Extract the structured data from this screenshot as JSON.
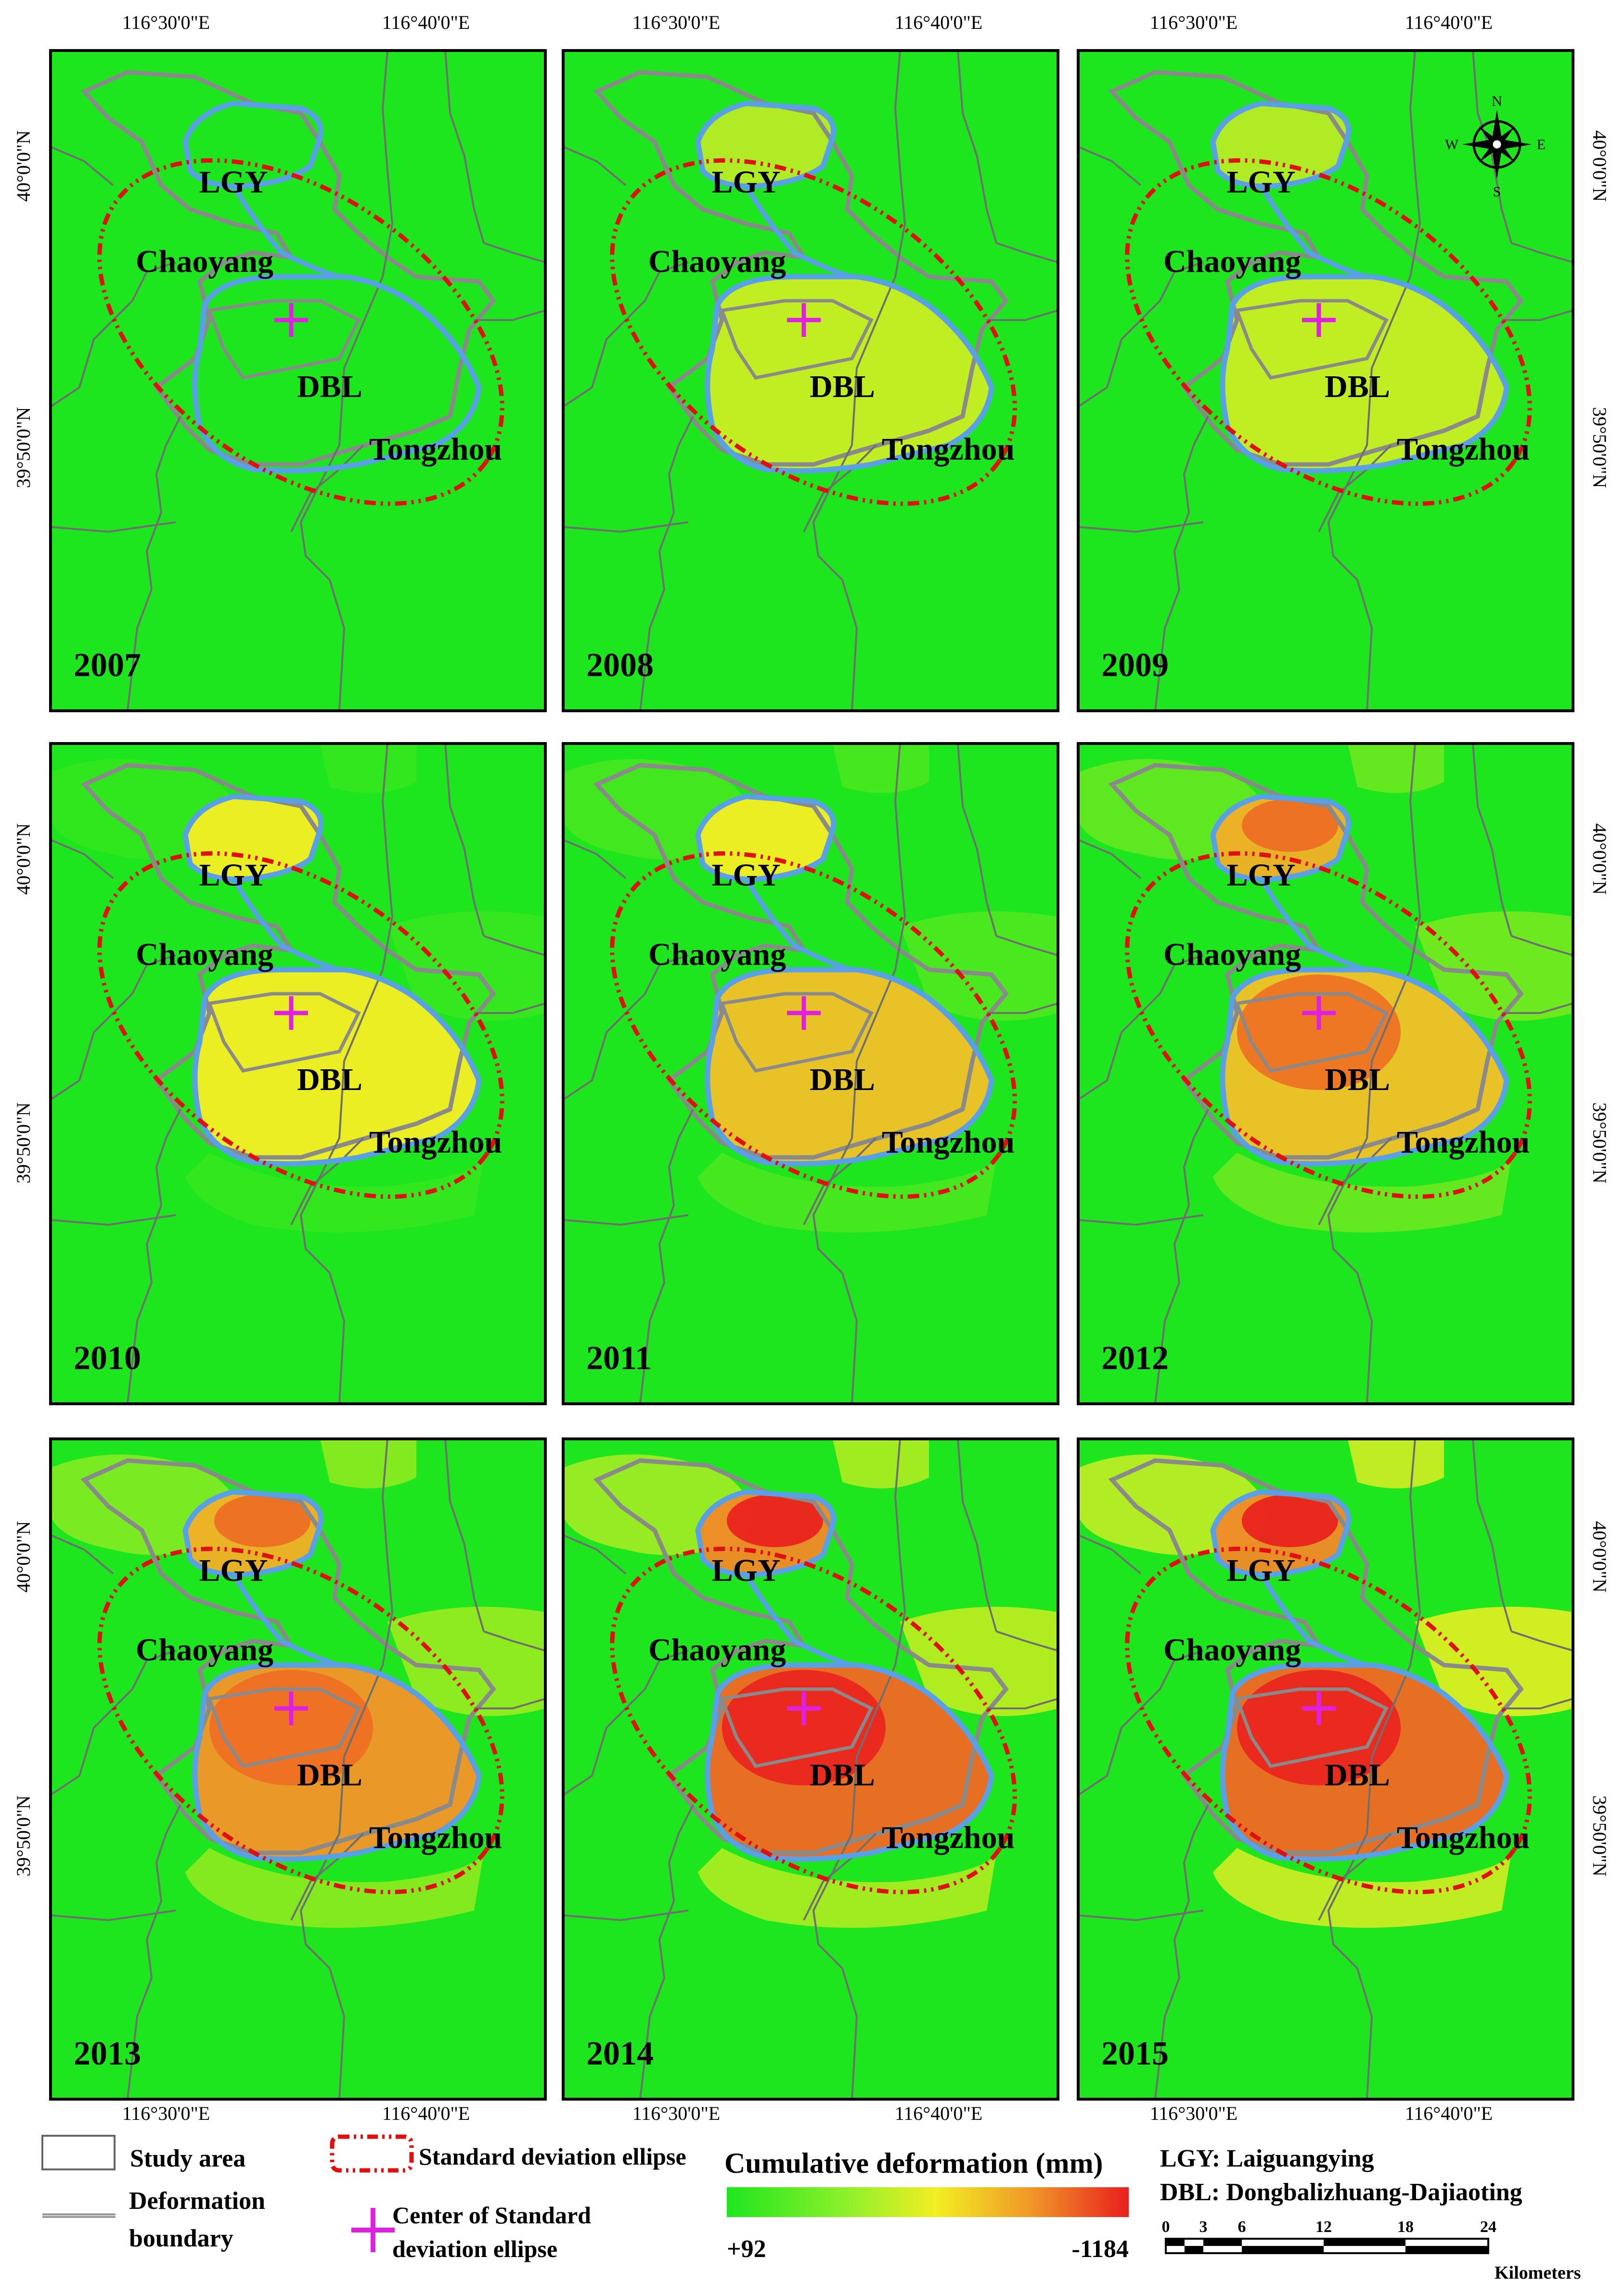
{
  "coordinate_labels": {
    "lon_west": "116°30'0\"E",
    "lon_east": "116°40'0\"E",
    "lat_north": "40°0'0\"N",
    "lat_south": "39°50'0\"N"
  },
  "region_labels": {
    "lgy": "LGY",
    "chaoyang": "Chaoyang",
    "dbl": "DBL",
    "tongzhou": "Tongzhou"
  },
  "panels": [
    {
      "year": "2007",
      "intensity": 0.0
    },
    {
      "year": "2008",
      "intensity": 0.06
    },
    {
      "year": "2009",
      "intensity": 0.16
    },
    {
      "year": "2010",
      "intensity": 0.3
    },
    {
      "year": "2011",
      "intensity": 0.4
    },
    {
      "year": "2012",
      "intensity": 0.55
    },
    {
      "year": "2013",
      "intensity": 0.7
    },
    {
      "year": "2014",
      "intensity": 0.85
    },
    {
      "year": "2015",
      "intensity": 1.0
    }
  ],
  "compass": {
    "n": "N",
    "s": "S",
    "e": "E",
    "w": "W"
  },
  "legend": {
    "study_area": "Study area",
    "deformation_boundary_line1": "Deformation",
    "deformation_boundary_line2": "boundary",
    "ellipse": "Standard deviation ellipse",
    "center_line1": "Center of Standard",
    "center_line2": "deviation ellipse",
    "colorbar_title": "Cumulative deformation (mm)",
    "colorbar_min": "+92",
    "colorbar_max": "-1184",
    "abbr_lgy": "LGY: Laiguangying",
    "abbr_dbl": "DBL: Dongbalizhuang-Dajiaoting",
    "scale_ticks": [
      "0",
      "3",
      "6",
      "12",
      "18",
      "24"
    ],
    "scale_unit": "Kilometers"
  },
  "colors": {
    "green": "#1ee61e",
    "yellow": "#f2ee22",
    "orange": "#f09628",
    "red": "#ea1e1e",
    "boundary_blue": "#5aa0e6",
    "boundary_gray": "#8a8a8a",
    "ellipse_red": "#e01010",
    "center_magenta": "#e020e0"
  }
}
